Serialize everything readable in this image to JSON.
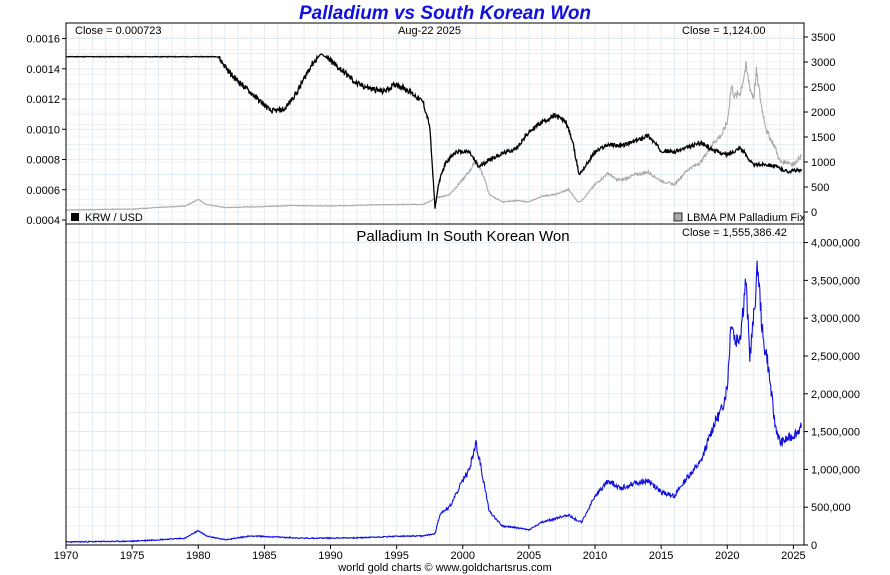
{
  "title": "Palladium vs South Korean Won",
  "footer": "world gold charts © www.goldchartsrus.com",
  "date_label": "Aug-22  2025",
  "colors": {
    "krw": "#000000",
    "palladium_usd": "#aaaaaa",
    "pd_krw": "#1010e0",
    "grid": "#dfe8ee",
    "title": "#1010e0"
  },
  "chart_data": [
    {
      "type": "line",
      "title": "",
      "close_left": "Close = 0.000723",
      "close_right": "Close = 1,124.00",
      "xlim": [
        1970,
        2025.8
      ],
      "x_ticks": [
        "1970",
        "1975",
        "1980",
        "1985",
        "1990",
        "1995",
        "2000",
        "2005",
        "2010",
        "2015",
        "2020",
        "2025"
      ],
      "y_left": {
        "lim": [
          0.0004,
          0.00165
        ],
        "ticks": [
          "0.0004",
          "0.0006",
          "0.0008",
          "0.0010",
          "0.0012",
          "0.0014",
          "0.0016"
        ]
      },
      "y_right": {
        "lim": [
          0,
          3600
        ],
        "ticks": [
          "0",
          "500",
          "1000",
          "1500",
          "2000",
          "2500",
          "3000",
          "3500"
        ]
      },
      "series": [
        {
          "name": "KRW / USD",
          "axis": "left",
          "x": [
            1970,
            1975,
            1980,
            1981.5,
            1982.5,
            1983.5,
            1984.5,
            1985.5,
            1986.5,
            1987.5,
            1988.5,
            1989.3,
            1990,
            1991,
            1992,
            1993,
            1994,
            1995,
            1996,
            1997,
            1997.5,
            1997.9,
            1998.2,
            1998.7,
            1999.5,
            2000.5,
            2001.2,
            2002,
            2003,
            2004,
            2005,
            2006,
            2007,
            2007.8,
            2008.3,
            2008.8,
            2009.3,
            2010,
            2011,
            2012,
            2013,
            2014,
            2015,
            2016,
            2017,
            2018,
            2019,
            2020,
            2021,
            2022,
            2022.8,
            2023.5,
            2024,
            2024.6,
            2025.2,
            2025.6
          ],
          "y": [
            0.00148,
            0.00148,
            0.00148,
            0.00148,
            0.00136,
            0.00128,
            0.0012,
            0.00112,
            0.00113,
            0.00125,
            0.00142,
            0.0015,
            0.00145,
            0.00138,
            0.0013,
            0.00127,
            0.00125,
            0.0013,
            0.00125,
            0.00118,
            0.00102,
            0.00048,
            0.00065,
            0.00078,
            0.00085,
            0.00085,
            0.00075,
            0.0008,
            0.00084,
            0.00087,
            0.00098,
            0.00105,
            0.00109,
            0.00105,
            0.00092,
            0.0007,
            0.00076,
            0.00085,
            0.0009,
            0.00089,
            0.00092,
            0.00096,
            0.00086,
            0.00085,
            0.00088,
            0.00091,
            0.00086,
            0.00083,
            0.00088,
            0.00076,
            0.00077,
            0.00076,
            0.00074,
            0.00072,
            0.00073,
            0.000723
          ]
        },
        {
          "name": "LBMA PM Palladium Fix",
          "axis": "right",
          "x": [
            1970,
            1975,
            1979,
            1980,
            1980.6,
            1982,
            1985,
            1987,
            1990,
            1993,
            1995,
            1997,
            1998,
            1999,
            2000,
            2000.6,
            2001,
            2001.6,
            2002,
            2003,
            2004,
            2005,
            2006,
            2007,
            2008,
            2008.7,
            2009,
            2010,
            2011,
            2011.6,
            2012,
            2013,
            2014,
            2015,
            2016,
            2017,
            2018,
            2019,
            2019.6,
            2020,
            2020.3,
            2020.6,
            2021,
            2021.4,
            2021.8,
            2022,
            2022.2,
            2022.6,
            2023,
            2023.6,
            2024,
            2024.6,
            2025,
            2025.6
          ],
          "y": [
            40,
            60,
            120,
            250,
            150,
            90,
            110,
            130,
            120,
            140,
            150,
            150,
            280,
            350,
            650,
            850,
            1050,
            700,
            350,
            200,
            230,
            200,
            320,
            350,
            450,
            200,
            230,
            550,
            780,
            650,
            640,
            740,
            800,
            620,
            550,
            850,
            1000,
            1400,
            1550,
            1800,
            2500,
            2300,
            2400,
            2900,
            2400,
            2300,
            2800,
            2100,
            1600,
            1300,
            1000,
            1000,
            950,
            1124
          ]
        },
        {
          "name": "",
          "axis": "left",
          "x": [
            1970,
            2025.6
          ],
          "y": [
            0.000723,
            0.000723
          ]
        }
      ]
    },
    {
      "type": "line",
      "title": "Palladium In South Korean Won",
      "close_right": "Close = 1,555,386.42",
      "xlim": [
        1970,
        2025.8
      ],
      "y_right": {
        "lim": [
          0,
          4100000
        ],
        "ticks": [
          "0",
          "500,000",
          "1,000,000",
          "1,500,000",
          "2,000,000",
          "2,500,000",
          "3,000,000",
          "3,500,000",
          "4,000,000"
        ]
      },
      "series": [
        {
          "name": "",
          "x": [
            1970,
            1975,
            1979,
            1980,
            1980.6,
            1982,
            1984,
            1988,
            1992,
            1995,
            1997,
            1997.9,
            1998.3,
            1999,
            2000,
            2000.5,
            2001,
            2001.4,
            2002,
            2003,
            2004,
            2005,
            2006,
            2007,
            2008,
            2008.7,
            2009,
            2010,
            2011,
            2012,
            2013,
            2014,
            2015,
            2016,
            2017,
            2018,
            2019,
            2019.6,
            2020,
            2020.3,
            2020.6,
            2021,
            2021.4,
            2021.7,
            2022,
            2022.3,
            2022.7,
            2023,
            2023.6,
            2024,
            2024.5,
            2025,
            2025.6
          ],
          "y": [
            40000,
            50000,
            90000,
            190000,
            120000,
            70000,
            120000,
            90000,
            95000,
            115000,
            120000,
            150000,
            420000,
            500000,
            850000,
            1000000,
            1350000,
            1000000,
            450000,
            250000,
            230000,
            200000,
            300000,
            350000,
            400000,
            320000,
            300000,
            650000,
            850000,
            750000,
            820000,
            850000,
            700000,
            650000,
            900000,
            1100000,
            1600000,
            1800000,
            2100000,
            3000000,
            2700000,
            2800000,
            3500000,
            2500000,
            3000000,
            3700000,
            2700000,
            2500000,
            1600000,
            1350000,
            1400000,
            1450000,
            1555386
          ]
        }
      ]
    }
  ]
}
